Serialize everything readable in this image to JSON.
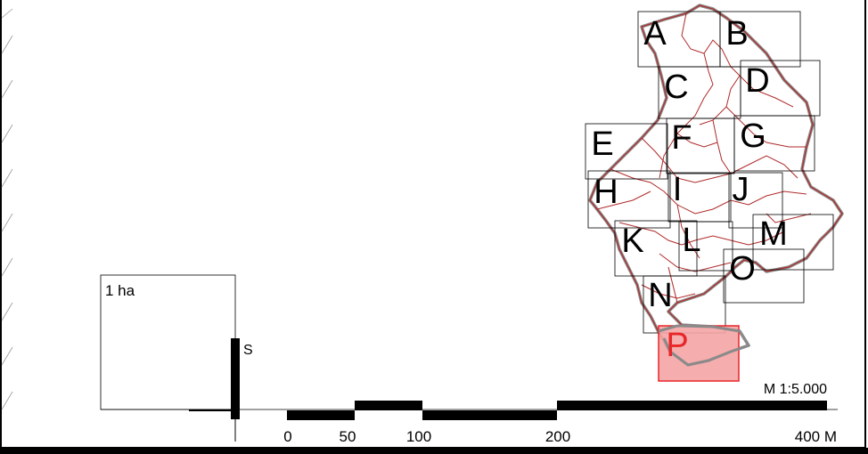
{
  "map": {
    "tiles": [
      {
        "label": "A",
        "highlighted": false
      },
      {
        "label": "B",
        "highlighted": false
      },
      {
        "label": "C",
        "highlighted": false
      },
      {
        "label": "D",
        "highlighted": false
      },
      {
        "label": "E",
        "highlighted": false
      },
      {
        "label": "F",
        "highlighted": false
      },
      {
        "label": "G",
        "highlighted": false
      },
      {
        "label": "H",
        "highlighted": false
      },
      {
        "label": "I",
        "highlighted": false
      },
      {
        "label": "J",
        "highlighted": false
      },
      {
        "label": "K",
        "highlighted": false
      },
      {
        "label": "L",
        "highlighted": false
      },
      {
        "label": "M",
        "highlighted": false
      },
      {
        "label": "N",
        "highlighted": false
      },
      {
        "label": "O",
        "highlighted": false
      },
      {
        "label": "P",
        "highlighted": true
      }
    ],
    "area_box_label": "1 ha",
    "north_label": "S",
    "scale_label": "M 1:5.000",
    "scale_ticks": [
      "0",
      "50",
      "100",
      "200",
      "400 M"
    ],
    "colors": {
      "highlight_fill": "#f4a4a4",
      "highlight_stroke": "#e8262a",
      "highlight_text": "#e8262a",
      "parcel_line": "#b02a2a",
      "coast_line": "#888888",
      "frame": "#000000"
    }
  }
}
